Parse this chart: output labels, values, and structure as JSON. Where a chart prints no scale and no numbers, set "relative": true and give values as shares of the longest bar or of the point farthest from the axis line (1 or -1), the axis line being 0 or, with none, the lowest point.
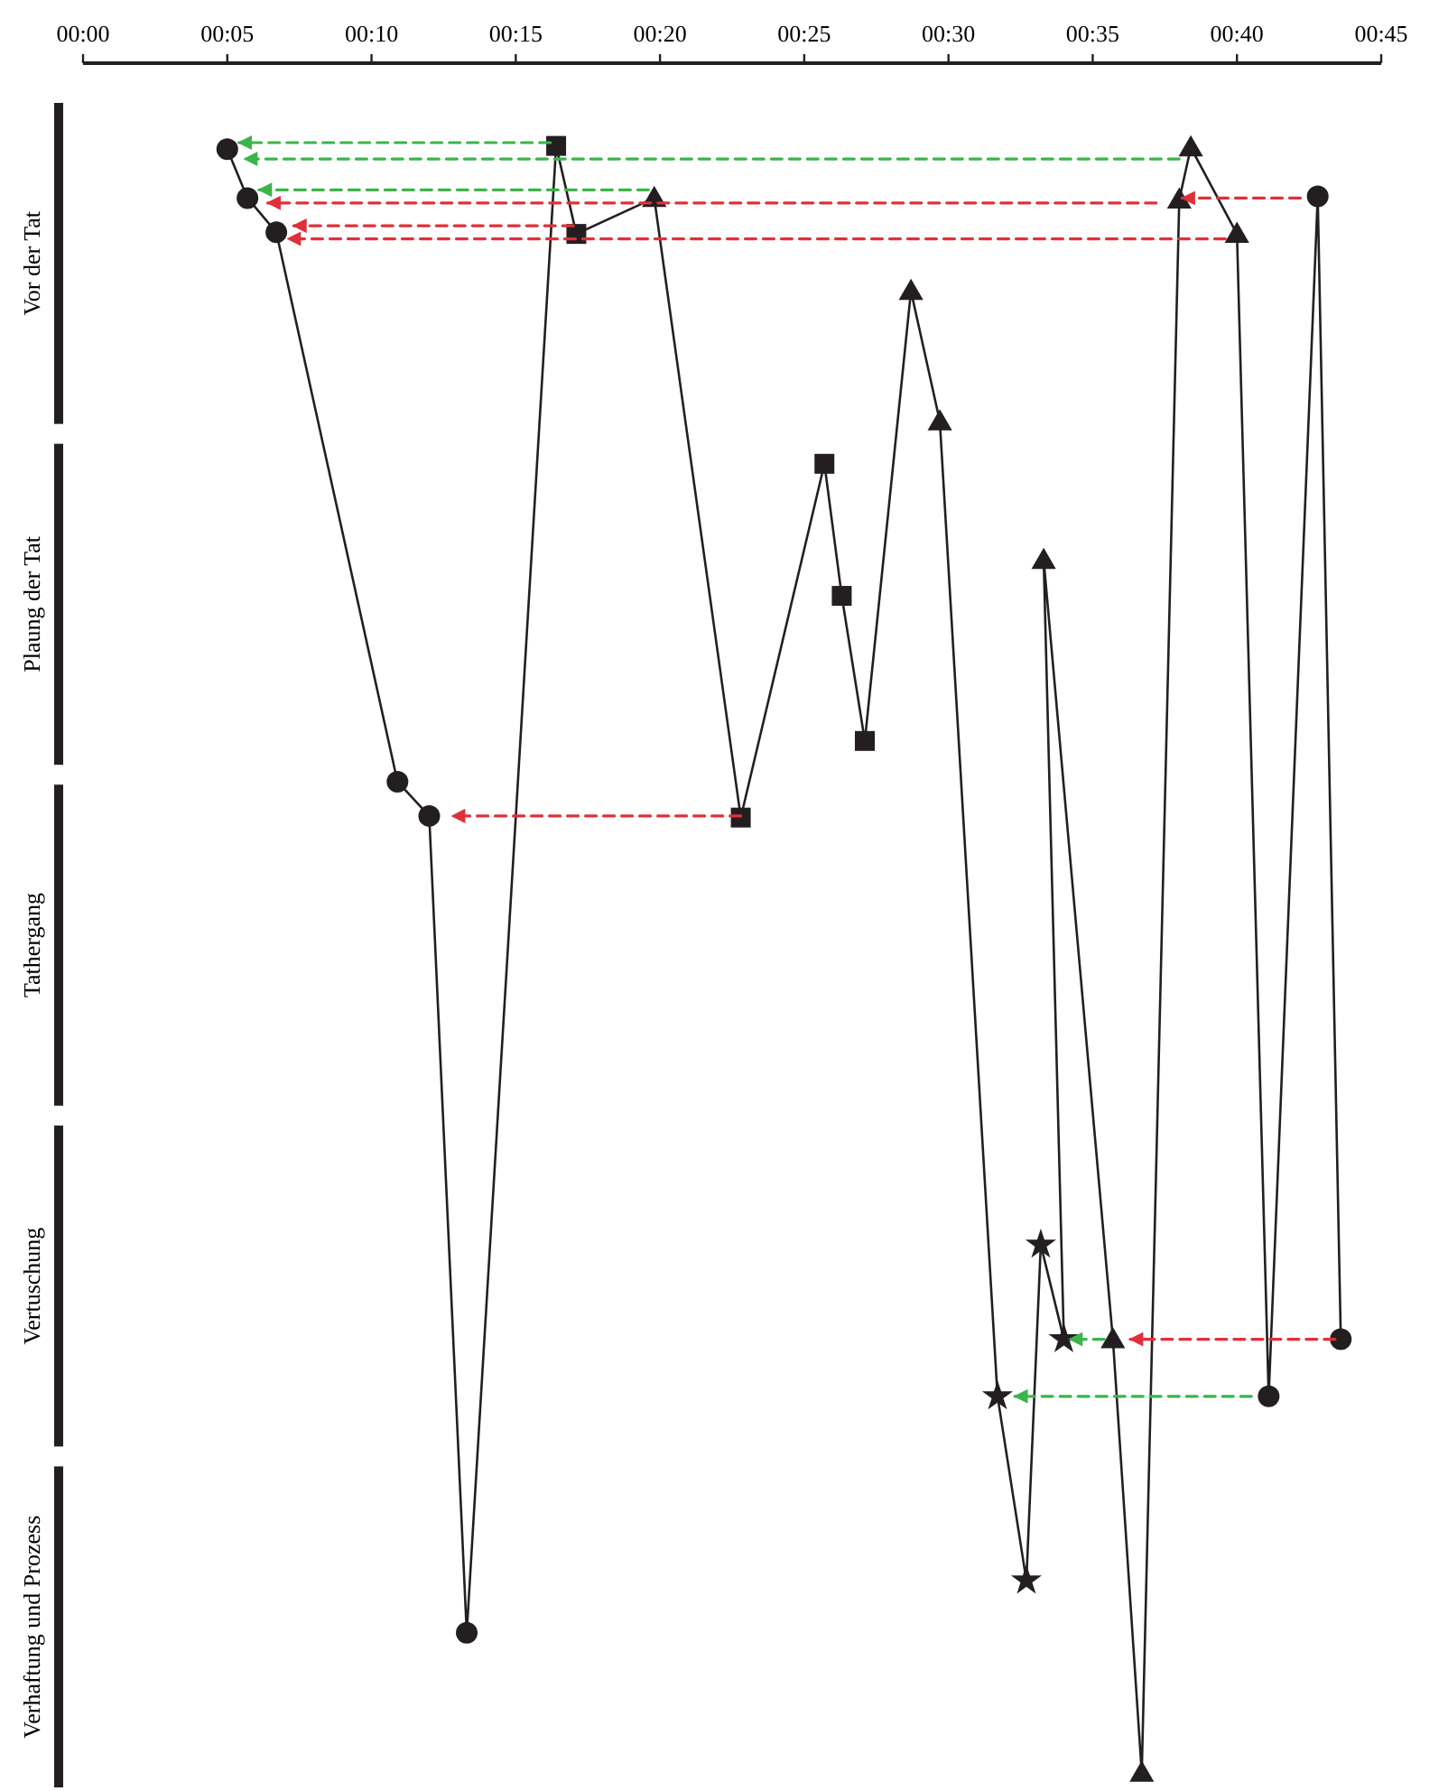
{
  "chart_data": {
    "type": "line",
    "relative": true,
    "xlim": [
      0,
      45
    ],
    "xticks": [
      {
        "value": 0,
        "label": "00:00"
      },
      {
        "value": 5,
        "label": "00:05"
      },
      {
        "value": 10,
        "label": "00:10"
      },
      {
        "value": 15,
        "label": "00:15"
      },
      {
        "value": 20,
        "label": "00:20"
      },
      {
        "value": 25,
        "label": "00:25"
      },
      {
        "value": 30,
        "label": "00:30"
      },
      {
        "value": 35,
        "label": "00:35"
      },
      {
        "value": 40,
        "label": "00:40"
      },
      {
        "value": 45,
        "label": "00:45"
      }
    ],
    "annotations": [
      "Vor der Tat",
      "Plaung der Tat",
      "Tathergang",
      "Vertuschung",
      "Verhaftung und Prozess"
    ],
    "series": [
      {
        "color": "#231f20",
        "marker": "none",
        "line_style": "solid",
        "x": [
          5.0,
          5.7,
          6.7,
          10.9,
          12.0,
          13.3,
          16.4,
          17.1,
          19.8,
          22.8,
          25.7,
          26.3,
          27.1,
          28.7,
          29.7,
          31.7,
          32.7,
          33.2,
          34.0,
          33.3,
          35.7,
          36.7,
          38.0,
          38.4,
          40.0,
          41.1,
          42.8,
          43.6
        ],
        "values": [
          0.996,
          0.966,
          0.945,
          0.608,
          0.587,
          0.086,
          0.998,
          0.944,
          0.966,
          0.586,
          0.803,
          0.722,
          0.633,
          0.909,
          0.829,
          0.231,
          0.118,
          0.324,
          0.266,
          0.744,
          0.266,
          0,
          0.965,
          0.997,
          0.944,
          0.231,
          0.967,
          0.266
        ]
      },
      {
        "type": "scatter",
        "color": "#231f20",
        "marker": "circle",
        "x": [
          5.0,
          5.7,
          6.7,
          10.9,
          12.0,
          13.3,
          41.1,
          42.8,
          43.6
        ],
        "values": [
          0.996,
          0.966,
          0.945,
          0.608,
          0.587,
          0.086,
          0.231,
          0.967,
          0.266
        ]
      },
      {
        "type": "scatter",
        "color": "#231f20",
        "marker": "square",
        "x": [
          16.4,
          17.1,
          22.8,
          25.7,
          26.3,
          27.1
        ],
        "values": [
          0.998,
          0.944,
          0.586,
          0.803,
          0.722,
          0.633
        ]
      },
      {
        "type": "scatter",
        "color": "#231f20",
        "marker": "triangle",
        "x": [
          19.8,
          28.7,
          29.7,
          33.3,
          35.7,
          36.7,
          38.0,
          38.4,
          40.0
        ],
        "values": [
          0.966,
          0.909,
          0.829,
          0.744,
          0.266,
          0,
          0.965,
          0.997,
          0.944
        ]
      },
      {
        "type": "scatter",
        "color": "#231f20",
        "marker": "star",
        "x": [
          31.7,
          32.7,
          33.2,
          34.0
        ],
        "values": [
          0.231,
          0.118,
          0.324,
          0.266
        ]
      },
      {
        "type": "line",
        "color": "#3cb44b",
        "marker": "none",
        "line_style": "dashed",
        "x": [
          16.2,
          5.4
        ],
        "values": [
          1.0,
          1.0
        ]
      },
      {
        "type": "line",
        "color": "#3cb44b",
        "marker": "none",
        "line_style": "dashed",
        "x": [
          38.0,
          5.6
        ],
        "values": [
          0.99,
          0.99
        ]
      },
      {
        "type": "line",
        "color": "#3cb44b",
        "marker": "none",
        "line_style": "dashed",
        "x": [
          19.6,
          6.1
        ],
        "values": [
          0.971,
          0.971
        ]
      },
      {
        "type": "line",
        "color": "#e0303a",
        "marker": "none",
        "line_style": "dashed",
        "x": [
          37.2,
          6.4
        ],
        "values": [
          0.963,
          0.963
        ]
      },
      {
        "type": "line",
        "color": "#e0303a",
        "marker": "none",
        "line_style": "dashed",
        "x": [
          42.2,
          38.1
        ],
        "values": [
          0.966,
          0.966
        ]
      },
      {
        "type": "line",
        "color": "#e0303a",
        "marker": "none",
        "line_style": "dashed",
        "x": [
          17.0,
          7.3
        ],
        "values": [
          0.949,
          0.949
        ]
      },
      {
        "type": "line",
        "color": "#e0303a",
        "marker": "none",
        "line_style": "dashed",
        "x": [
          39.6,
          7.1
        ],
        "values": [
          0.941,
          0.941
        ]
      },
      {
        "type": "line",
        "color": "#e0303a",
        "marker": "none",
        "line_style": "dashed",
        "x": [
          22.8,
          12.8
        ],
        "values": [
          0.587,
          0.587
        ]
      },
      {
        "type": "line",
        "color": "#e0303a",
        "marker": "none",
        "line_style": "dashed",
        "x": [
          43.4,
          36.3
        ],
        "values": [
          0.266,
          0.266
        ]
      },
      {
        "type": "line",
        "color": "#3cb44b",
        "marker": "none",
        "line_style": "dashed",
        "x": [
          35.4,
          34.2
        ],
        "values": [
          0.266,
          0.266
        ]
      },
      {
        "type": "line",
        "color": "#3cb44b",
        "marker": "none",
        "line_style": "dashed",
        "x": [
          40.5,
          32.3
        ],
        "values": [
          0.231,
          0.231
        ]
      }
    ]
  }
}
